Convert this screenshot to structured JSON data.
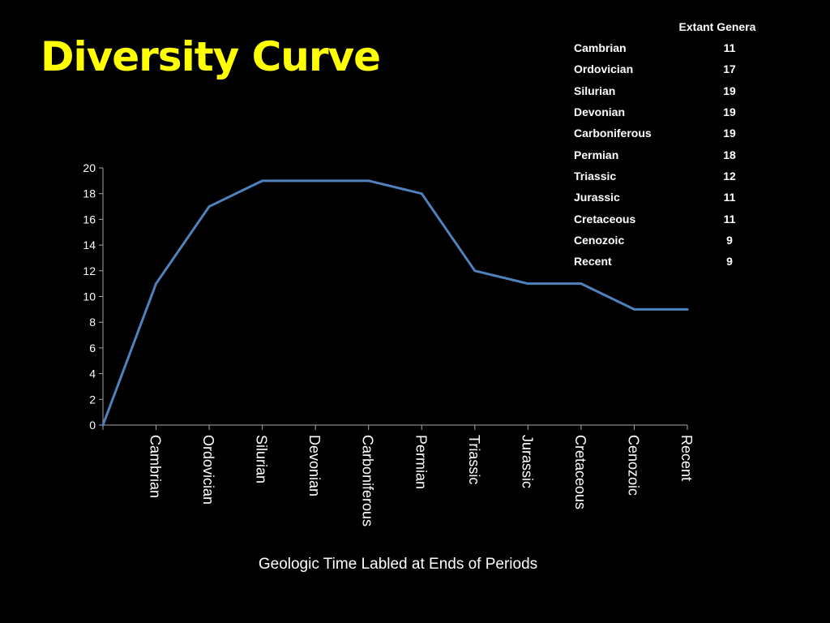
{
  "title": "Diversity Curve",
  "table": {
    "header": "Extant Genera",
    "rows": [
      {
        "period": "Cambrian",
        "value": "11"
      },
      {
        "period": "Ordovician",
        "value": "17"
      },
      {
        "period": "Silurian",
        "value": "19"
      },
      {
        "period": "Devonian",
        "value": "19"
      },
      {
        "period": "Carboniferous",
        "value": "19"
      },
      {
        "period": "Permian",
        "value": "18"
      },
      {
        "period": "Triassic",
        "value": "12"
      },
      {
        "period": "Jurassic",
        "value": "11"
      },
      {
        "period": "Cretaceous",
        "value": "11"
      },
      {
        "period": "Cenozoic",
        "value": "9"
      },
      {
        "period": "Recent",
        "value": "9"
      }
    ]
  },
  "chart_data": {
    "type": "line",
    "categories": [
      "",
      "Cambrian",
      "Ordovician",
      "Silurian",
      "Devonian",
      "Carboniferous",
      "Permian",
      "Triassic",
      "Jurassic",
      "Cretaceous",
      "Cenozoic",
      "Recent"
    ],
    "series": [
      {
        "values": [
          0,
          11,
          17,
          19,
          19,
          19,
          18,
          12,
          11,
          11,
          9,
          9
        ]
      }
    ],
    "title": "",
    "xlabel": "Geologic Time Labled at Ends of Periods",
    "ylabel": "",
    "ylim": [
      0,
      20
    ],
    "yticks": [
      "0",
      "2",
      "4",
      "6",
      "8",
      "10",
      "12",
      "14",
      "16",
      "18",
      "20"
    ],
    "grid": false,
    "legend": "none",
    "line_color": "#4f81bd",
    "axis_color": "#a6a6a6"
  }
}
